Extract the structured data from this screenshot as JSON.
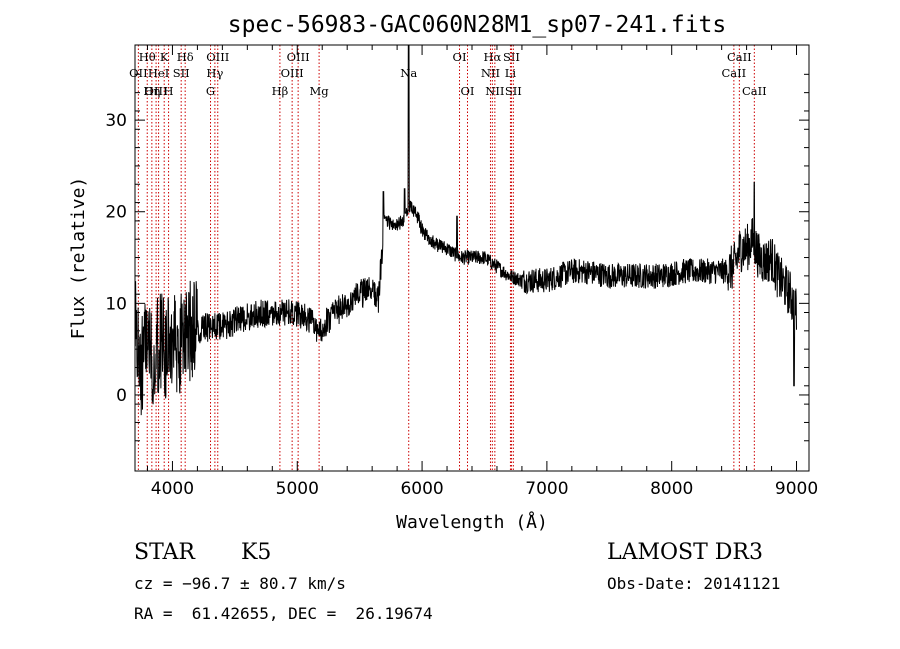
{
  "chart_data": {
    "type": "line",
    "title": "spec-56983-GAC060N28M1_sp07-241.fits",
    "xlabel": "Wavelength (Å)",
    "ylabel": "Flux (relative)",
    "xlim": [
      3700,
      9100
    ],
    "ylim": [
      -8.3,
      38.2
    ],
    "xticks": [
      4000,
      5000,
      6000,
      7000,
      8000,
      9000
    ],
    "yticks": [
      0,
      10,
      20,
      30
    ],
    "spectrum_anchors": [
      [
        3700,
        8
      ],
      [
        3750,
        3
      ],
      [
        3800,
        7
      ],
      [
        3850,
        4
      ],
      [
        3900,
        6
      ],
      [
        3950,
        5
      ],
      [
        4000,
        6
      ],
      [
        4050,
        5
      ],
      [
        4100,
        7
      ],
      [
        4200,
        7
      ],
      [
        4300,
        7.5
      ],
      [
        4400,
        7.5
      ],
      [
        4500,
        8
      ],
      [
        4600,
        8.5
      ],
      [
        4700,
        9
      ],
      [
        4800,
        9
      ],
      [
        4900,
        9
      ],
      [
        5000,
        9
      ],
      [
        5100,
        8
      ],
      [
        5180,
        7
      ],
      [
        5300,
        9
      ],
      [
        5400,
        10
      ],
      [
        5500,
        11
      ],
      [
        5600,
        11.5
      ],
      [
        5650,
        10.5
      ],
      [
        5700,
        19
      ],
      [
        5800,
        18.5
      ],
      [
        5850,
        19
      ],
      [
        5900,
        20.5
      ],
      [
        5950,
        20
      ],
      [
        6000,
        18
      ],
      [
        6100,
        16.5
      ],
      [
        6200,
        16
      ],
      [
        6300,
        15
      ],
      [
        6400,
        15
      ],
      [
        6500,
        15
      ],
      [
        6600,
        14
      ],
      [
        6700,
        13
      ],
      [
        6800,
        12.5
      ],
      [
        6900,
        12.5
      ],
      [
        7000,
        12.5
      ],
      [
        7100,
        13
      ],
      [
        7200,
        13.5
      ],
      [
        7300,
        13.5
      ],
      [
        7500,
        13
      ],
      [
        7700,
        13
      ],
      [
        7900,
        13
      ],
      [
        8100,
        13.5
      ],
      [
        8300,
        13.5
      ],
      [
        8450,
        13.5
      ],
      [
        8500,
        14
      ],
      [
        8550,
        16
      ],
      [
        8600,
        16
      ],
      [
        8650,
        17
      ],
      [
        8700,
        15
      ],
      [
        8750,
        14.5
      ],
      [
        8800,
        15
      ],
      [
        8850,
        13
      ],
      [
        8900,
        12
      ],
      [
        8950,
        11
      ],
      [
        9000,
        9
      ]
    ],
    "spectral_lines": [
      {
        "label": "OII",
        "wavelength": 3727,
        "row": 2
      },
      {
        "label": "Hθ",
        "wavelength": 3798,
        "row": 1
      },
      {
        "label": "OIII",
        "wavelength": 3869,
        "row": 3
      },
      {
        "label": "K",
        "wavelength": 3934,
        "row": 1
      },
      {
        "label": "HeI",
        "wavelength": 3889,
        "row": 2
      },
      {
        "label": "Hη",
        "wavelength": 3835,
        "row": 3
      },
      {
        "label": "SII",
        "wavelength": 4070,
        "row": 2
      },
      {
        "label": "H",
        "wavelength": 3969,
        "row": 3
      },
      {
        "label": "Hδ",
        "wavelength": 4102,
        "row": 1
      },
      {
        "label": "OIII",
        "wavelength": 4363,
        "row": 1
      },
      {
        "label": "Hγ",
        "wavelength": 4340,
        "row": 2
      },
      {
        "label": "G",
        "wavelength": 4305,
        "row": 3
      },
      {
        "label": "Hβ",
        "wavelength": 4861,
        "row": 3
      },
      {
        "label": "OIII",
        "wavelength": 5007,
        "row": 1
      },
      {
        "label": "OIII",
        "wavelength": 4959,
        "row": 2
      },
      {
        "label": "Mg",
        "wavelength": 5175,
        "row": 3
      },
      {
        "label": "Na",
        "wavelength": 5893,
        "row": 2
      },
      {
        "label": "OI",
        "wavelength": 6300,
        "row": 1
      },
      {
        "label": "OI",
        "wavelength": 6364,
        "row": 3
      },
      {
        "label": "Hα",
        "wavelength": 6563,
        "row": 1
      },
      {
        "label": "NII",
        "wavelength": 6548,
        "row": 2
      },
      {
        "label": "NII",
        "wavelength": 6583,
        "row": 3
      },
      {
        "label": "SII",
        "wavelength": 6716,
        "row": 1
      },
      {
        "label": "Li",
        "wavelength": 6708,
        "row": 2
      },
      {
        "label": "SII",
        "wavelength": 6731,
        "row": 3
      },
      {
        "label": "CaII",
        "wavelength": 8542,
        "row": 1
      },
      {
        "label": "CaII",
        "wavelength": 8498,
        "row": 2
      },
      {
        "label": "CaII",
        "wavelength": 8662,
        "row": 3
      }
    ]
  },
  "info": {
    "class": "STAR",
    "subclass": "K5",
    "survey": "LAMOST DR3",
    "cz": "cz = −96.7 ± 80.7 km/s",
    "obs_date": "Obs-Date: 20141121",
    "coords": "RA =  61.42655, DEC =  26.19674"
  }
}
